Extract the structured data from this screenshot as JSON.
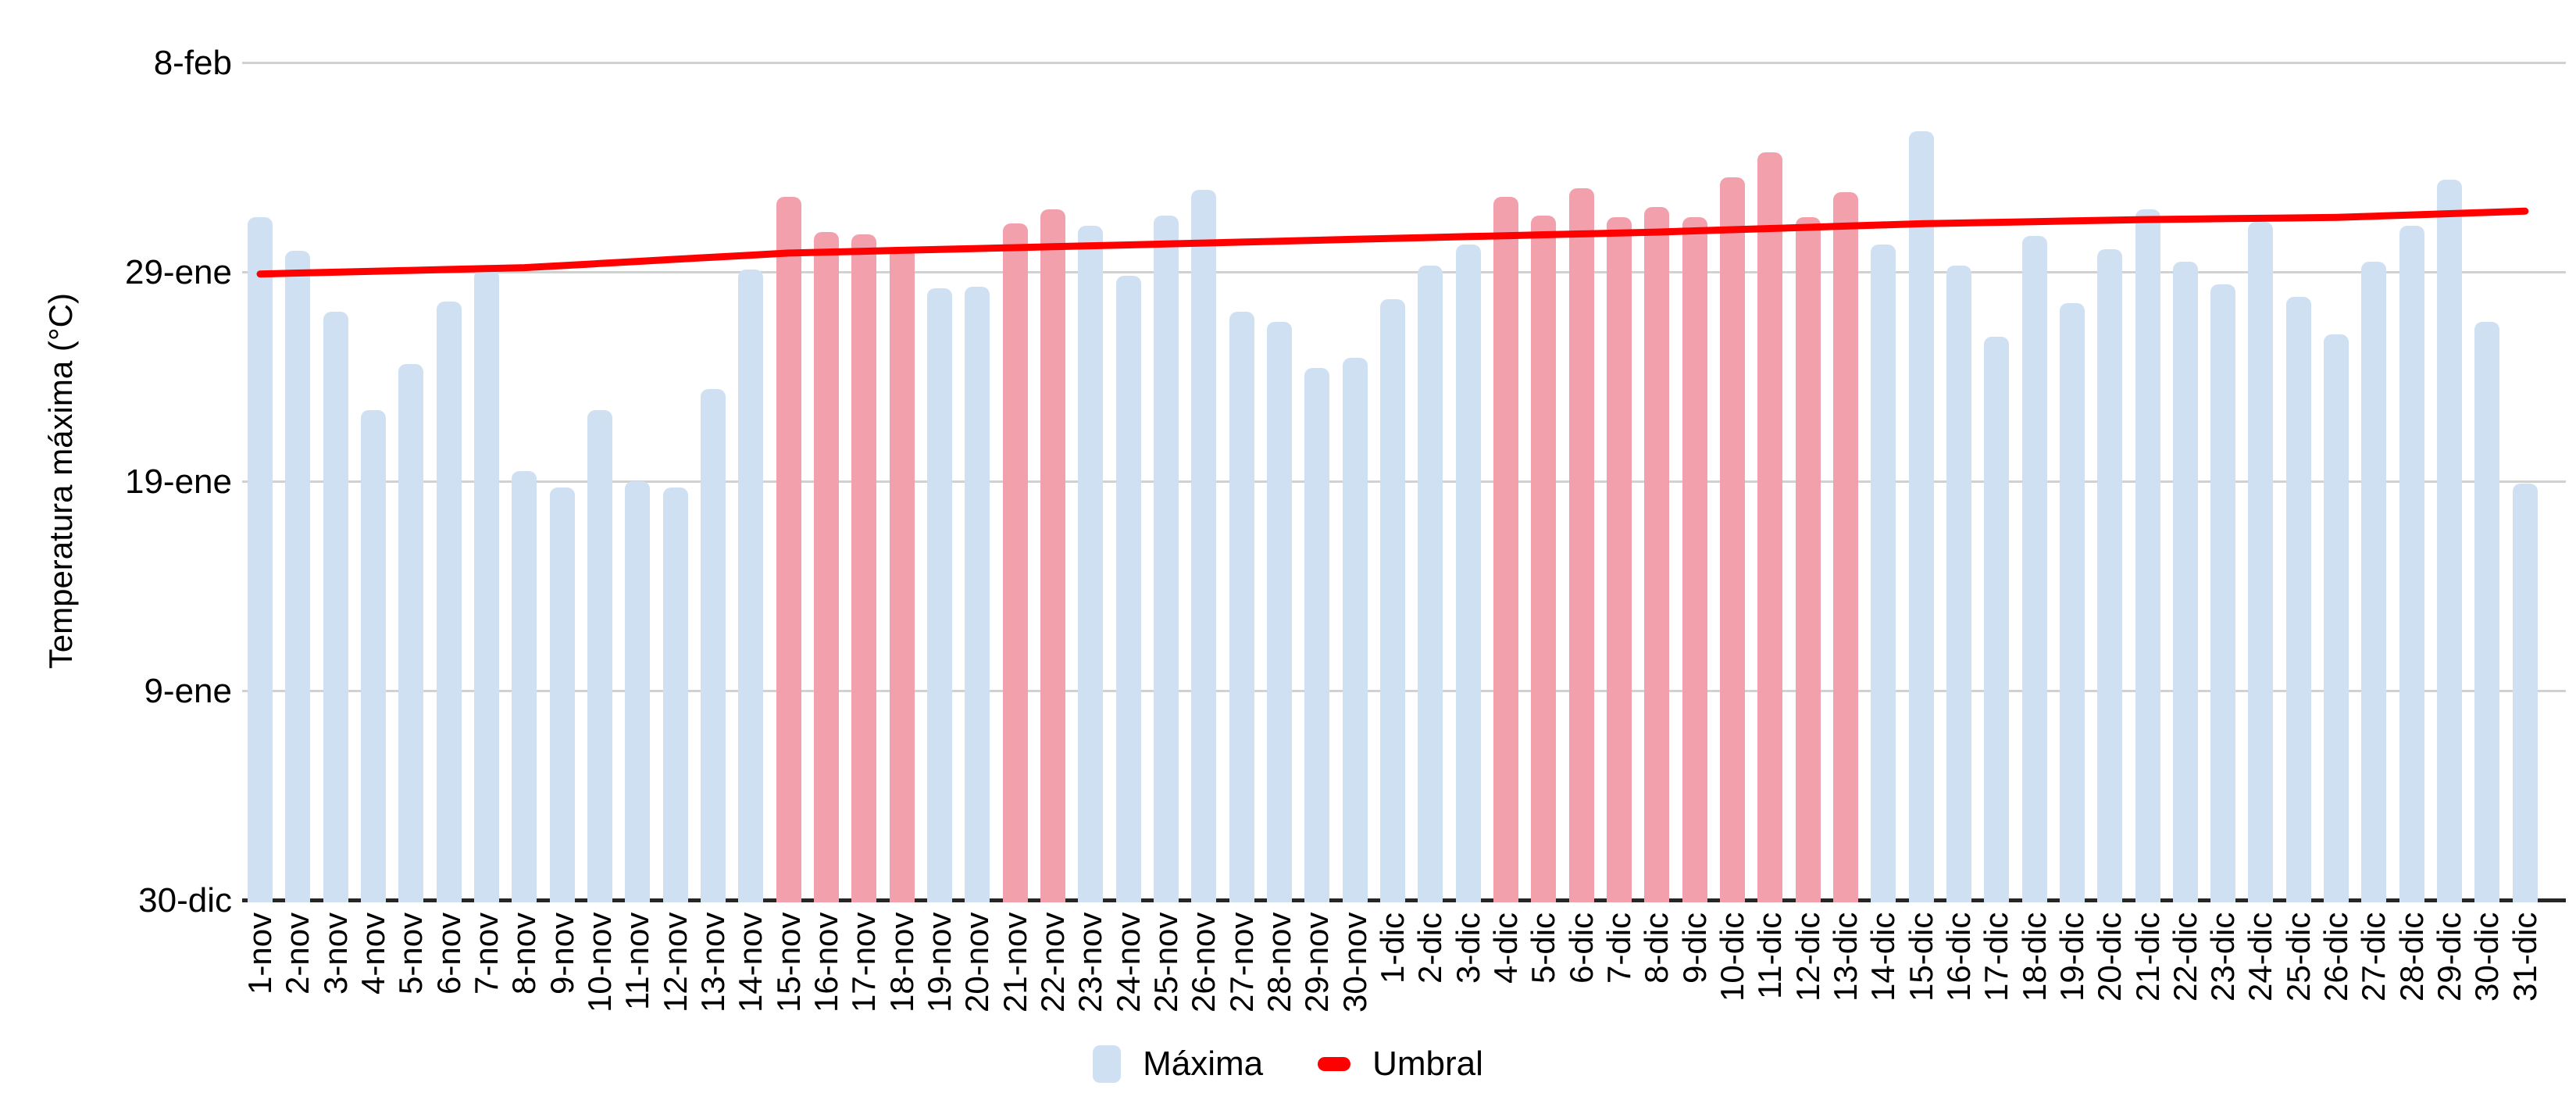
{
  "y_axis": {
    "title": "Temperatura máxima (°C)",
    "ticks": [
      {
        "label": "8-feb",
        "value": 40
      },
      {
        "label": "29-ene",
        "value": 30
      },
      {
        "label": "19-ene",
        "value": 20
      },
      {
        "label": "9-ene",
        "value": 10
      },
      {
        "label": "30-dic",
        "value": 0
      }
    ]
  },
  "legend": {
    "maxima_label": "Máxima",
    "umbral_label": "Umbral"
  },
  "colors": {
    "bar_blue": "#CFE0F2",
    "bar_red": "#F2A0AC",
    "umbral_line": "#FF0000",
    "gridline": "#D1D1D1",
    "axis_line": "#262626",
    "text": "#000000"
  },
  "chart_data": {
    "type": "bar",
    "title": "",
    "xlabel": "",
    "ylabel": "Temperatura máxima (°C)",
    "ylim": [
      0,
      40
    ],
    "grid": "horizontal",
    "legend_position": "bottom",
    "value_axis_note": "Y-axis tick labels are rendered as dates (Excel date formatting artifact): 30-dic = baseline 0, each gridline = +10 units up to 8-feb = 40. Bar values below are measured in those axis units.",
    "categories": [
      "1-nov",
      "2-nov",
      "3-nov",
      "4-nov",
      "5-nov",
      "6-nov",
      "7-nov",
      "8-nov",
      "9-nov",
      "10-nov",
      "11-nov",
      "12-nov",
      "13-nov",
      "14-nov",
      "15-nov",
      "16-nov",
      "17-nov",
      "18-nov",
      "19-nov",
      "20-nov",
      "21-nov",
      "22-nov",
      "23-nov",
      "24-nov",
      "25-nov",
      "26-nov",
      "27-nov",
      "28-nov",
      "29-nov",
      "30-nov",
      "1-dic",
      "2-dic",
      "3-dic",
      "4-dic",
      "5-dic",
      "6-dic",
      "7-dic",
      "8-dic",
      "9-dic",
      "10-dic",
      "11-dic",
      "12-dic",
      "13-dic",
      "14-dic",
      "15-dic",
      "16-dic",
      "17-dic",
      "18-dic",
      "19-dic",
      "20-dic",
      "21-dic",
      "22-dic",
      "23-dic",
      "24-dic",
      "25-dic",
      "26-dic",
      "27-dic",
      "28-dic",
      "29-dic",
      "30-dic",
      "31-dic"
    ],
    "series": [
      {
        "name": "Máxima",
        "type": "bar",
        "values": [
          32.6,
          31.0,
          28.1,
          23.4,
          25.6,
          28.6,
          30.1,
          20.5,
          19.7,
          23.4,
          20.0,
          19.7,
          24.4,
          30.1,
          33.6,
          31.9,
          31.8,
          31.2,
          29.2,
          29.3,
          32.3,
          33.0,
          32.2,
          29.8,
          32.7,
          33.9,
          28.1,
          27.6,
          25.4,
          25.9,
          28.7,
          30.3,
          31.3,
          33.6,
          32.7,
          34.0,
          32.6,
          33.1,
          32.6,
          34.5,
          35.7,
          32.6,
          33.8,
          31.3,
          36.7,
          30.3,
          26.9,
          31.7,
          28.5,
          31.1,
          33.0,
          30.5,
          29.4,
          32.4,
          28.8,
          27.0,
          30.5,
          32.2,
          34.4,
          27.6,
          19.9
        ]
      },
      {
        "name": "Umbral",
        "type": "line",
        "waypoints": [
          [
            1,
            29.9
          ],
          [
            8,
            30.2
          ],
          [
            15,
            30.9
          ],
          [
            22,
            31.2
          ],
          [
            31,
            31.6
          ],
          [
            38,
            31.9
          ],
          [
            45,
            32.3
          ],
          [
            51,
            32.5
          ],
          [
            56,
            32.6
          ],
          [
            61,
            32.9
          ]
        ]
      }
    ],
    "highlighted_red_categories": [
      "15-nov",
      "16-nov",
      "17-nov",
      "18-nov",
      "21-nov",
      "22-nov",
      "4-dic",
      "5-dic",
      "6-dic",
      "7-dic",
      "8-dic",
      "9-dic",
      "10-dic",
      "11-dic",
      "12-dic",
      "13-dic"
    ]
  }
}
